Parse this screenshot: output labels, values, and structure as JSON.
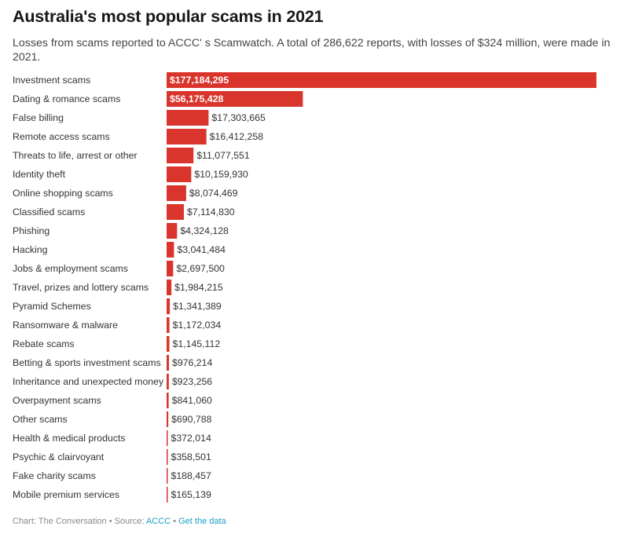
{
  "header": {
    "title": "Australia's most popular scams in 2021",
    "subtitle": "Losses from scams reported to ACCC' s Scamwatch. A total of 286,622 reports, with losses of $324 million, were made in 2021."
  },
  "footer": {
    "chart_prefix": "Chart: The Conversation • Source: ",
    "source_link": "ACCC",
    "separator": " • ",
    "data_link": "Get the data"
  },
  "colors": {
    "bar": "#d9352c",
    "link": "#1a9fc6"
  },
  "chart_data": {
    "type": "bar",
    "orientation": "horizontal",
    "title": "Australia's most popular scams in 2021",
    "categories": [
      "Investment scams",
      "Dating & romance scams",
      "False billing",
      "Remote access scams",
      "Threats to life, arrest or other",
      "Identity theft",
      "Online shopping scams",
      "Classified scams",
      "Phishing",
      "Hacking",
      "Jobs & employment scams",
      "Travel, prizes and lottery scams",
      "Pyramid Schemes",
      "Ransomware & malware",
      "Rebate scams",
      "Betting & sports investment scams",
      "Inheritance and unexpected money",
      "Overpayment scams",
      "Other scams",
      "Health & medical products",
      "Psychic & clairvoyant",
      "Fake charity scams",
      "Mobile premium services"
    ],
    "values": [
      177184295,
      56175428,
      17303665,
      16412258,
      11077551,
      10159930,
      8074469,
      7114830,
      4324128,
      3041484,
      2697500,
      1984215,
      1341389,
      1172034,
      1145112,
      976214,
      923256,
      841060,
      690788,
      372014,
      358501,
      188457,
      165139
    ],
    "value_labels": [
      "$177,184,295",
      "$56,175,428",
      "$17,303,665",
      "$16,412,258",
      "$11,077,551",
      "$10,159,930",
      "$8,074,469",
      "$7,114,830",
      "$4,324,128",
      "$3,041,484",
      "$2,697,500",
      "$1,984,215",
      "$1,341,389",
      "$1,172,034",
      "$1,145,112",
      "$976,214",
      "$923,256",
      "$841,060",
      "$690,788",
      "$372,014",
      "$358,501",
      "$188,457",
      "$165,139"
    ],
    "xlim": [
      0,
      177184295
    ],
    "grid": false,
    "legend": "none"
  }
}
